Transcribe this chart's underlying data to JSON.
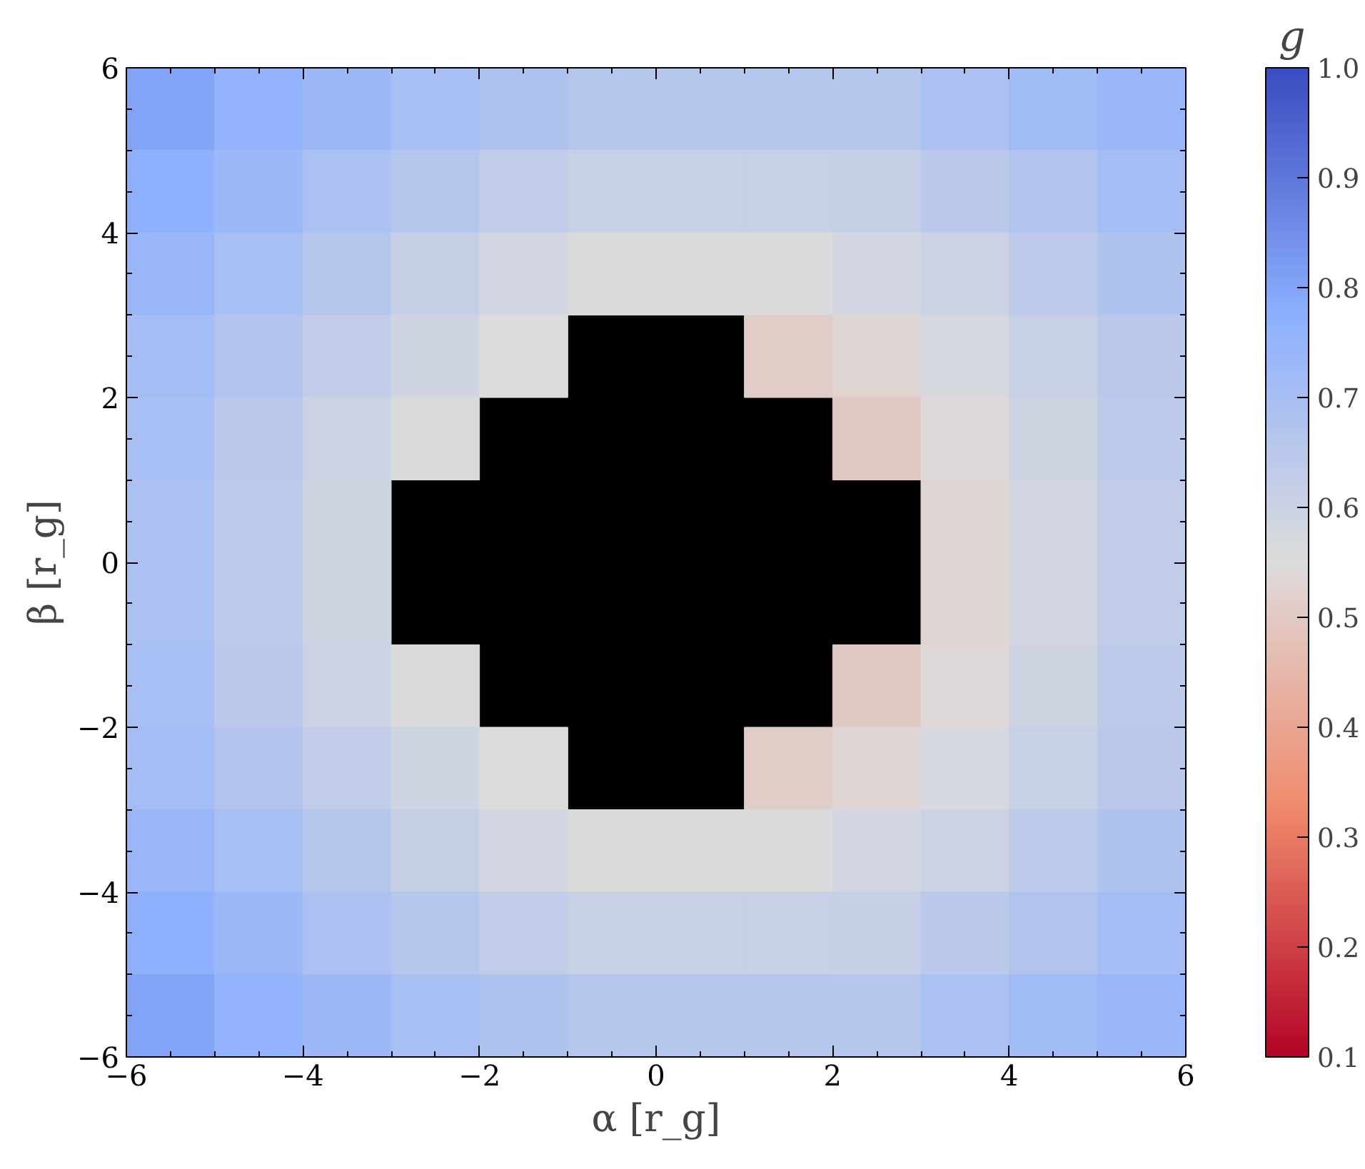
{
  "chart_data": {
    "type": "heatmap",
    "xlabel": "α [r_g]",
    "ylabel": "β [r_g]",
    "clabel": "g",
    "x": [
      -5.5,
      -4.5,
      -3.5,
      -2.5,
      -1.5,
      -0.5,
      0.5,
      1.5,
      2.5,
      3.5,
      4.5,
      5.5
    ],
    "y": [
      5.5,
      4.5,
      3.5,
      2.5,
      1.5,
      0.5,
      -0.5,
      -1.5,
      -2.5,
      -3.5,
      -4.5,
      -5.5
    ],
    "xlim": [
      -6,
      6
    ],
    "ylim": [
      -6,
      6
    ],
    "xticks": [
      {
        "value": -6,
        "label": "−6"
      },
      {
        "value": -4,
        "label": "−4"
      },
      {
        "value": -2,
        "label": "−2"
      },
      0,
      2,
      4,
      6
    ],
    "yticks": [
      {
        "value": -6,
        "label": "−6"
      },
      {
        "value": -4,
        "label": "−4"
      },
      {
        "value": -2,
        "label": "−2"
      },
      0,
      2,
      4,
      6
    ],
    "clim": [
      0.1,
      1.0
    ],
    "cticks": [
      0.1,
      0.2,
      0.3,
      0.4,
      0.5,
      0.6,
      0.7,
      0.8,
      0.9,
      {
        "value": 1.0,
        "label": "1.0"
      }
    ],
    "cells": [
      [
        0.8,
        0.76,
        0.73,
        0.7,
        0.68,
        0.66,
        0.66,
        0.66,
        0.66,
        0.69,
        0.72,
        0.74
      ],
      [
        0.77,
        0.73,
        0.69,
        0.66,
        0.63,
        0.61,
        0.61,
        0.61,
        0.62,
        0.65,
        0.67,
        0.71
      ],
      [
        0.74,
        0.7,
        0.66,
        0.62,
        0.58,
        0.56,
        0.56,
        0.56,
        0.58,
        0.6,
        0.64,
        0.68
      ],
      [
        0.71,
        0.67,
        0.63,
        0.59,
        0.55,
        null,
        null,
        0.51,
        0.53,
        0.57,
        0.61,
        0.65
      ],
      [
        0.7,
        0.65,
        0.6,
        0.56,
        null,
        null,
        null,
        null,
        0.5,
        0.54,
        0.59,
        0.64
      ],
      [
        0.69,
        0.64,
        0.59,
        null,
        null,
        null,
        null,
        null,
        null,
        0.53,
        0.58,
        0.63
      ],
      [
        0.69,
        0.64,
        0.59,
        null,
        null,
        null,
        null,
        null,
        null,
        0.53,
        0.58,
        0.63
      ],
      [
        0.7,
        0.65,
        0.6,
        0.56,
        null,
        null,
        null,
        null,
        0.5,
        0.54,
        0.59,
        0.64
      ],
      [
        0.71,
        0.67,
        0.63,
        0.59,
        0.55,
        null,
        null,
        0.51,
        0.53,
        0.57,
        0.61,
        0.65
      ],
      [
        0.74,
        0.7,
        0.66,
        0.62,
        0.58,
        0.56,
        0.56,
        0.56,
        0.58,
        0.6,
        0.64,
        0.68
      ],
      [
        0.77,
        0.73,
        0.69,
        0.66,
        0.63,
        0.61,
        0.61,
        0.61,
        0.62,
        0.65,
        0.67,
        0.71
      ],
      [
        0.8,
        0.76,
        0.73,
        0.7,
        0.68,
        0.66,
        0.66,
        0.66,
        0.66,
        0.69,
        0.72,
        0.74
      ]
    ]
  }
}
